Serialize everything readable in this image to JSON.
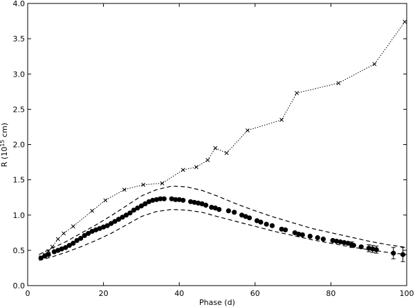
{
  "chart_data": {
    "type": "scatter",
    "title": "",
    "xlabel": "Phase (d)",
    "ylabel": {
      "prefix": "R (10",
      "exponent": "15",
      "suffix": " cm)"
    },
    "xlim": [
      0,
      100
    ],
    "ylim": [
      0.0,
      4.0
    ],
    "x_ticks": [
      "0",
      "20",
      "40",
      "60",
      "80",
      "100"
    ],
    "y_ticks": [
      "0.0",
      "0.5",
      "1.0",
      "1.5",
      "2.0",
      "2.5",
      "3.0",
      "3.5",
      "4.0"
    ],
    "grid": false,
    "legend": "none",
    "series": [
      {
        "style": "dotted line with x markers",
        "color": "#000000",
        "points": [
          [
            3.5,
            0.4
          ],
          [
            4.5,
            0.44
          ],
          [
            5.5,
            0.49
          ],
          [
            6.5,
            0.55
          ],
          [
            8.0,
            0.66
          ],
          [
            9.5,
            0.74
          ],
          [
            12.0,
            0.84
          ],
          [
            17.0,
            1.06
          ],
          [
            20.5,
            1.21
          ],
          [
            25.5,
            1.36
          ],
          [
            30.5,
            1.43
          ],
          [
            35.5,
            1.45
          ],
          [
            41.0,
            1.64
          ],
          [
            44.5,
            1.68
          ],
          [
            47.5,
            1.78
          ],
          [
            49.5,
            1.95
          ],
          [
            52.5,
            1.88
          ],
          [
            58.0,
            2.2
          ],
          [
            67.0,
            2.35
          ],
          [
            71.0,
            2.73
          ],
          [
            82.0,
            2.87
          ],
          [
            91.5,
            3.14
          ],
          [
            99.5,
            3.74
          ]
        ]
      },
      {
        "style": "filled circle markers",
        "color": "#000000",
        "points": [
          [
            3.5,
            0.39
          ],
          [
            4.5,
            0.42
          ],
          [
            5.5,
            0.44
          ],
          [
            7.0,
            0.48
          ],
          [
            8.0,
            0.5
          ],
          [
            9.0,
            0.52
          ],
          [
            10.0,
            0.54
          ],
          [
            11.0,
            0.57
          ],
          [
            12.0,
            0.6
          ],
          [
            13.0,
            0.64
          ],
          [
            14.0,
            0.67
          ],
          [
            15.0,
            0.71
          ],
          [
            16.0,
            0.74
          ],
          [
            17.0,
            0.77
          ],
          [
            18.0,
            0.79
          ],
          [
            19.0,
            0.81
          ],
          [
            20.0,
            0.83
          ],
          [
            21.0,
            0.85
          ],
          [
            22.0,
            0.88
          ],
          [
            23.0,
            0.91
          ],
          [
            24.0,
            0.94
          ],
          [
            25.0,
            0.97
          ],
          [
            26.0,
            1.0
          ],
          [
            27.0,
            1.03
          ],
          [
            28.0,
            1.07
          ],
          [
            29.0,
            1.1
          ],
          [
            30.0,
            1.13
          ],
          [
            31.0,
            1.16
          ],
          [
            32.0,
            1.19
          ],
          [
            33.0,
            1.21
          ],
          [
            34.0,
            1.22
          ],
          [
            35.0,
            1.23
          ],
          [
            36.0,
            1.23
          ],
          [
            38.0,
            1.23
          ],
          [
            39.0,
            1.22
          ],
          [
            40.0,
            1.22
          ],
          [
            41.0,
            1.21
          ],
          [
            43.0,
            1.19
          ],
          [
            44.0,
            1.18
          ],
          [
            45.0,
            1.17
          ],
          [
            46.0,
            1.16
          ],
          [
            47.0,
            1.14
          ],
          [
            48.5,
            1.11
          ],
          [
            49.5,
            1.1
          ],
          [
            50.5,
            1.08
          ],
          [
            53.0,
            1.06
          ],
          [
            54.5,
            1.04
          ],
          [
            56.5,
            1.0
          ],
          [
            57.5,
            0.98
          ],
          [
            58.5,
            0.96
          ],
          [
            60.5,
            0.92
          ],
          [
            61.5,
            0.9
          ],
          [
            63.0,
            0.87
          ],
          [
            64.5,
            0.85
          ],
          [
            67.0,
            0.8
          ],
          [
            68.0,
            0.79
          ],
          [
            70.5,
            0.75
          ],
          [
            71.5,
            0.73
          ],
          [
            72.5,
            0.72
          ],
          [
            74.5,
            0.7
          ],
          [
            76.5,
            0.68
          ],
          [
            78.0,
            0.66
          ],
          [
            80.5,
            0.64
          ],
          [
            81.5,
            0.63
          ],
          [
            82.5,
            0.62
          ],
          [
            83.5,
            0.61
          ],
          [
            84.5,
            0.6
          ],
          [
            85.5,
            0.58
          ],
          [
            86.0,
            0.57
          ],
          [
            88.0,
            0.55
          ],
          [
            90.0,
            0.53
          ],
          [
            91.0,
            0.52
          ],
          [
            92.0,
            0.51
          ],
          [
            96.5,
            0.46
          ],
          [
            99.0,
            0.44
          ]
        ],
        "error_bars": [
          [
            85.5,
            0.58,
            0.04
          ],
          [
            90.0,
            0.53,
            0.05
          ],
          [
            91.0,
            0.52,
            0.05
          ],
          [
            92.0,
            0.51,
            0.05
          ],
          [
            96.5,
            0.46,
            0.08
          ],
          [
            99.0,
            0.44,
            0.1
          ]
        ]
      },
      {
        "style": "dashed line (upper bound)",
        "color": "#000000",
        "points": [
          [
            3,
            0.44
          ],
          [
            6,
            0.52
          ],
          [
            10,
            0.62
          ],
          [
            14,
            0.74
          ],
          [
            18,
            0.86
          ],
          [
            22,
            0.99
          ],
          [
            26,
            1.13
          ],
          [
            30,
            1.27
          ],
          [
            34,
            1.36
          ],
          [
            38,
            1.41
          ],
          [
            42,
            1.4
          ],
          [
            46,
            1.35
          ],
          [
            50,
            1.27
          ],
          [
            55,
            1.16
          ],
          [
            60,
            1.06
          ],
          [
            65,
            0.97
          ],
          [
            70,
            0.89
          ],
          [
            75,
            0.81
          ],
          [
            80,
            0.75
          ],
          [
            85,
            0.69
          ],
          [
            90,
            0.63
          ],
          [
            95,
            0.58
          ],
          [
            100,
            0.54
          ]
        ]
      },
      {
        "style": "dashed line (lower bound)",
        "color": "#000000",
        "points": [
          [
            3,
            0.36
          ],
          [
            6,
            0.4
          ],
          [
            10,
            0.47
          ],
          [
            14,
            0.55
          ],
          [
            18,
            0.64
          ],
          [
            22,
            0.74
          ],
          [
            26,
            0.86
          ],
          [
            30,
            0.98
          ],
          [
            34,
            1.05
          ],
          [
            38,
            1.08
          ],
          [
            42,
            1.07
          ],
          [
            46,
            1.04
          ],
          [
            50,
            0.98
          ],
          [
            55,
            0.91
          ],
          [
            60,
            0.84
          ],
          [
            65,
            0.77
          ],
          [
            70,
            0.71
          ],
          [
            75,
            0.65
          ],
          [
            80,
            0.6
          ],
          [
            85,
            0.55
          ],
          [
            90,
            0.51
          ],
          [
            95,
            0.47
          ],
          [
            100,
            0.44
          ]
        ]
      }
    ]
  }
}
